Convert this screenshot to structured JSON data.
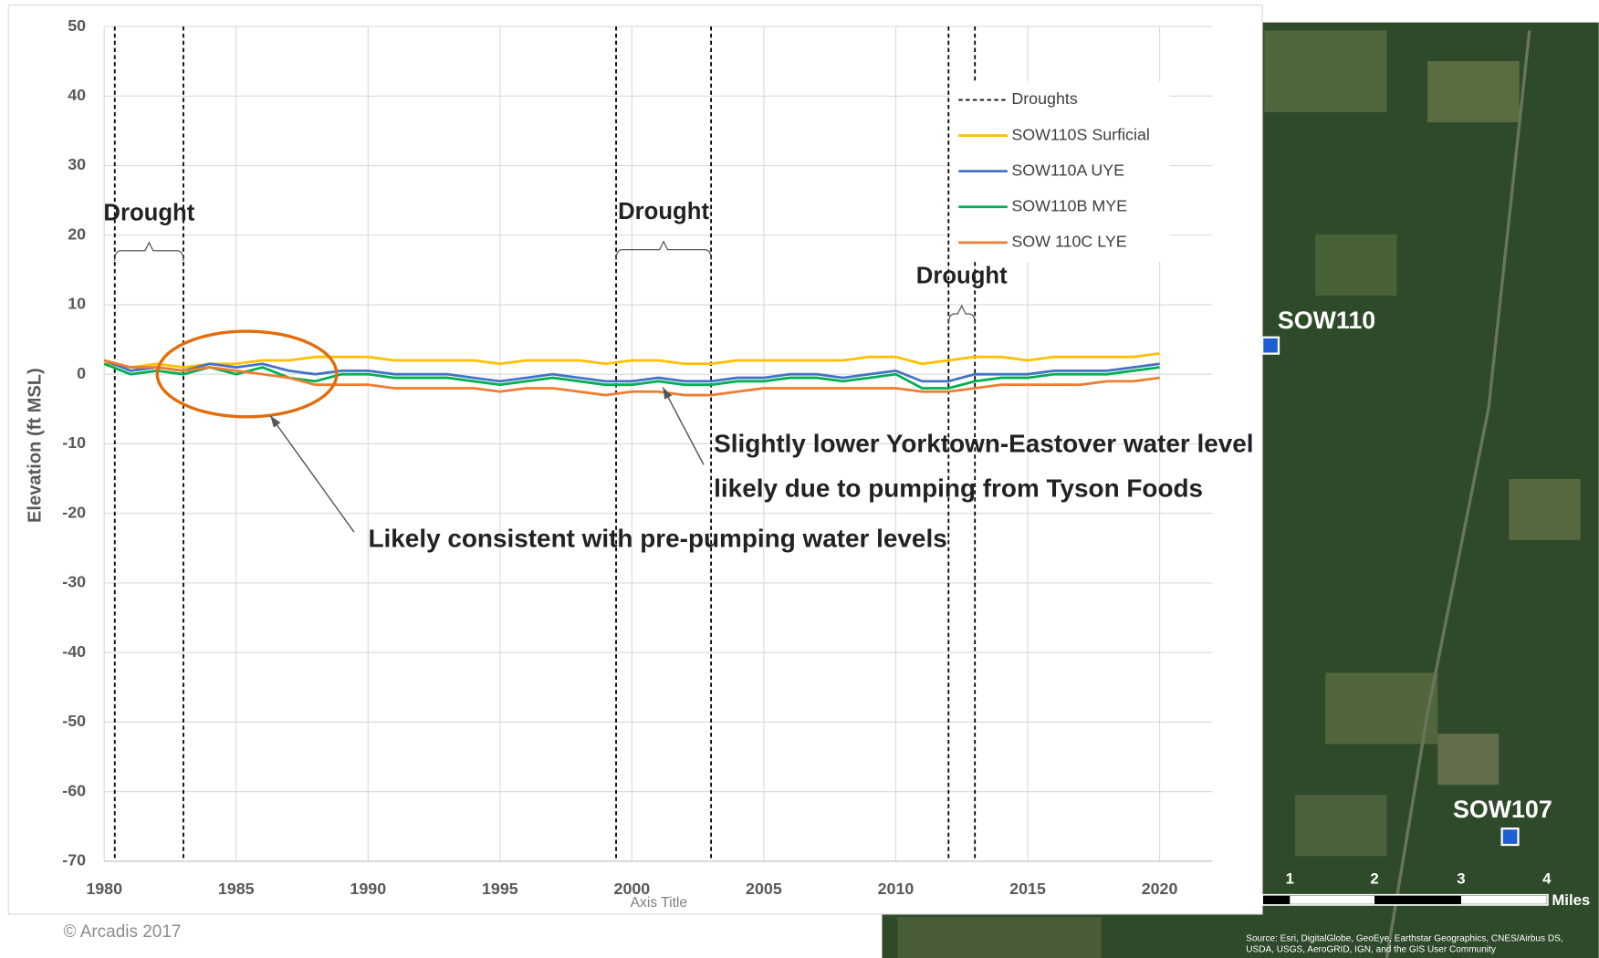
{
  "chart_data": {
    "type": "line",
    "x_label": "Axis Title",
    "y_label": "Elevation (ft MSL)",
    "xlim": [
      1980,
      2022
    ],
    "ylim": [
      -70,
      50
    ],
    "xticks": [
      1980,
      1985,
      1990,
      1995,
      2000,
      2005,
      2010,
      2015,
      2020
    ],
    "yticks": [
      -70,
      -60,
      -50,
      -40,
      -30,
      -20,
      -10,
      0,
      10,
      20,
      30,
      40,
      50
    ],
    "grid": true,
    "legend": "upper right",
    "drought_legend": "Droughts",
    "droughts": [
      {
        "label": "Drought",
        "start": 1980.4,
        "end": 1983.0
      },
      {
        "label": "Drought",
        "start": 1999.4,
        "end": 2003.0
      },
      {
        "label": "Drought",
        "start": 2012.0,
        "end": 2013.0
      }
    ],
    "x": [
      1980,
      1981,
      1982,
      1983,
      1984,
      1985,
      1986,
      1987,
      1988,
      1989,
      1990,
      1991,
      1992,
      1993,
      1994,
      1995,
      1996,
      1997,
      1998,
      1999,
      2000,
      2001,
      2002,
      2003,
      2004,
      2005,
      2006,
      2007,
      2008,
      2009,
      2010,
      2011,
      2012,
      2013,
      2014,
      2015,
      2016,
      2017,
      2018,
      2019,
      2020
    ],
    "series": [
      {
        "name": "SOW110S Surficial",
        "color": "#ffc000",
        "values": [
          1.5,
          1.0,
          1.5,
          1.0,
          1.5,
          1.5,
          2.0,
          2.0,
          2.5,
          2.5,
          2.5,
          2.0,
          2.0,
          2.0,
          2.0,
          1.5,
          2.0,
          2.0,
          2.0,
          1.5,
          2.0,
          2.0,
          1.5,
          1.5,
          2.0,
          2.0,
          2.0,
          2.0,
          2.0,
          2.5,
          2.5,
          1.5,
          2.0,
          2.5,
          2.5,
          2.0,
          2.5,
          2.5,
          2.5,
          2.5,
          3.0
        ]
      },
      {
        "name": "SOW110A UYE",
        "color": "#4472c4",
        "values": [
          2.0,
          0.5,
          1.0,
          0.5,
          1.5,
          1.0,
          1.5,
          0.5,
          0.0,
          0.5,
          0.5,
          0.0,
          0.0,
          0.0,
          -0.5,
          -1.0,
          -0.5,
          0.0,
          -0.5,
          -1.0,
          -1.0,
          -0.5,
          -1.0,
          -1.0,
          -0.5,
          -0.5,
          0.0,
          0.0,
          -0.5,
          0.0,
          0.5,
          -1.0,
          -1.0,
          0.0,
          0.0,
          0.0,
          0.5,
          0.5,
          0.5,
          1.0,
          1.5
        ]
      },
      {
        "name": "SOW110B MYE",
        "color": "#00b050",
        "values": [
          1.5,
          0.0,
          0.5,
          0.0,
          1.0,
          0.0,
          1.0,
          -0.5,
          -1.0,
          0.0,
          0.0,
          -0.5,
          -0.5,
          -0.5,
          -1.0,
          -1.5,
          -1.0,
          -0.5,
          -1.0,
          -1.5,
          -1.5,
          -1.0,
          -1.5,
          -1.5,
          -1.0,
          -1.0,
          -0.5,
          -0.5,
          -1.0,
          -0.5,
          0.0,
          -2.0,
          -2.0,
          -1.0,
          -0.5,
          -0.5,
          0.0,
          0.0,
          0.0,
          0.5,
          1.0
        ]
      },
      {
        "name": "SOW 110C LYE",
        "color": "#ed7d31",
        "values": [
          2.0,
          1.0,
          1.0,
          0.5,
          1.0,
          0.5,
          0.0,
          -0.5,
          -1.5,
          -1.5,
          -1.5,
          -2.0,
          -2.0,
          -2.0,
          -2.0,
          -2.5,
          -2.0,
          -2.0,
          -2.5,
          -3.0,
          -2.5,
          -2.5,
          -3.0,
          -3.0,
          -2.5,
          -2.0,
          -2.0,
          -2.0,
          -2.0,
          -2.0,
          -2.0,
          -2.5,
          -2.5,
          -2.0,
          -1.5,
          -1.5,
          -1.5,
          -1.5,
          -1.0,
          -1.0,
          -0.5
        ]
      }
    ],
    "annotations": [
      {
        "text": "Likely consistent with pre-pumping water levels"
      },
      {
        "text": "Slightly lower Yorktown-Eastover water level"
      },
      {
        "text": "likely due to pumping from Tyson Foods"
      }
    ]
  },
  "map": {
    "wells": [
      "SOW110",
      "SOW107"
    ],
    "scale_labels": [
      "1",
      "2",
      "3",
      "4"
    ],
    "scale_unit": "Miles",
    "source": [
      "Source: Esri, DigitalGlobe, GeoEye, Earthstar Geographics, CNES/Airbus DS,",
      "USDA, USGS, AeroGRID, IGN, and the GIS User Community"
    ]
  },
  "footer": "© Arcadis 2017"
}
